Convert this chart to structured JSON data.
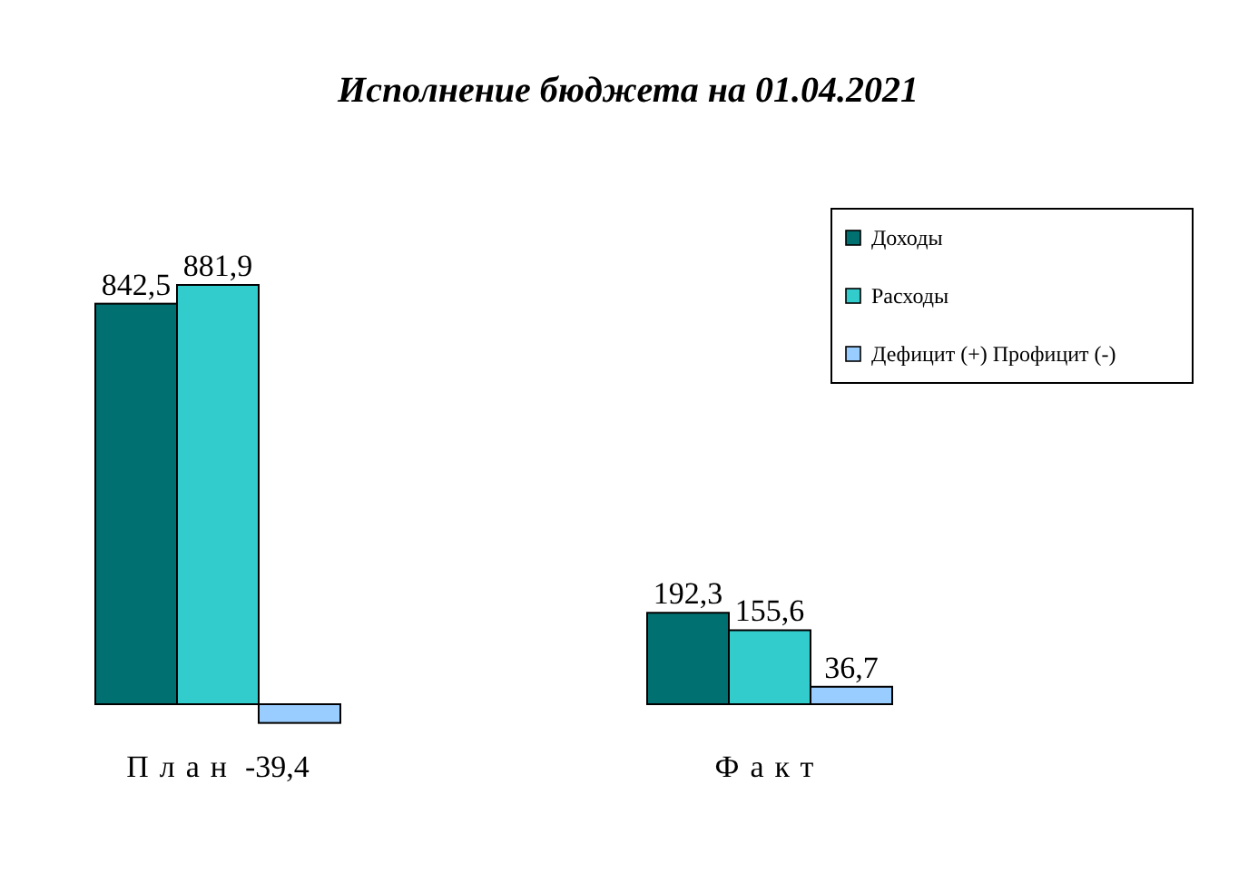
{
  "chart_data": {
    "type": "bar",
    "title": "Исполнение бюджета на 01.04.2021",
    "categories": [
      "План",
      "Факт"
    ],
    "series": [
      {
        "name": "Доходы",
        "color": "#007070",
        "values": [
          842.5,
          192.3
        ],
        "value_labels": [
          "842,5",
          "192,3"
        ]
      },
      {
        "name": "Расходы",
        "color": "#33cccc",
        "values": [
          881.9,
          155.6
        ],
        "value_labels": [
          "881,9",
          "155,6"
        ]
      },
      {
        "name": "Дефицит (+) Профицит (-)",
        "color": "#99ccff",
        "values": [
          -39.4,
          36.7
        ],
        "value_labels": [
          "-39,4",
          "36,7"
        ]
      }
    ],
    "legend": "top right"
  }
}
